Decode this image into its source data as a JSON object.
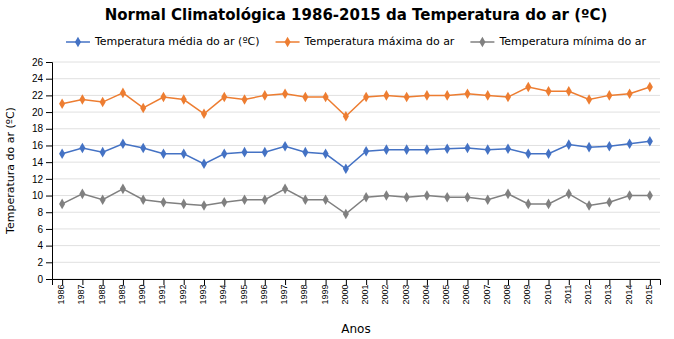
{
  "chart_data": {
    "type": "line",
    "title": "Normal Climatológica 1986-2015 da Temperatura do ar (ºC)",
    "x_label": "Anos",
    "y_label": "Temperatura do ar (ºC)",
    "x": [
      1986,
      1987,
      1988,
      1989,
      1990,
      1991,
      1992,
      1993,
      1994,
      1995,
      1996,
      1997,
      1998,
      1999,
      2000,
      2001,
      2002,
      2003,
      2004,
      2005,
      2006,
      2007,
      2008,
      2009,
      2010,
      2011,
      2012,
      2013,
      2014,
      2015
    ],
    "series": [
      {
        "name": "Temperatura média do ar (ºC)",
        "color": "#4472C4",
        "values": [
          15.0,
          15.7,
          15.2,
          16.2,
          15.7,
          15.0,
          15.0,
          13.8,
          15.0,
          15.2,
          15.2,
          15.9,
          15.2,
          15.0,
          13.2,
          15.3,
          15.5,
          15.5,
          15.5,
          15.6,
          15.7,
          15.5,
          15.6,
          15.0,
          15.0,
          16.1,
          15.8,
          15.9,
          16.2,
          16.5
        ]
      },
      {
        "name": "Temperatura máxima do ar",
        "color": "#ED7D31",
        "values": [
          21.0,
          21.5,
          21.2,
          22.3,
          20.5,
          21.8,
          21.5,
          19.8,
          21.8,
          21.5,
          22.0,
          22.2,
          21.8,
          21.8,
          19.5,
          21.8,
          22.0,
          21.8,
          22.0,
          22.0,
          22.2,
          22.0,
          21.8,
          23.0,
          22.5,
          22.5,
          21.5,
          22.0,
          22.2,
          23.0
        ]
      },
      {
        "name": "Temperatura mínima do ar",
        "color": "#808080",
        "values": [
          9.0,
          10.2,
          9.5,
          10.8,
          9.5,
          9.2,
          9.0,
          8.8,
          9.2,
          9.5,
          9.5,
          10.8,
          9.5,
          9.5,
          7.8,
          9.8,
          10.0,
          9.8,
          10.0,
          9.8,
          9.8,
          9.5,
          10.2,
          9.0,
          9.0,
          10.2,
          8.8,
          9.2,
          10.0,
          10.0
        ]
      }
    ],
    "marker": "diamond",
    "xlim": [
      1985.5,
      2015.5
    ],
    "xticks": [
      1986,
      1987,
      1988,
      1989,
      1990,
      1991,
      1992,
      1993,
      1994,
      1995,
      1996,
      1997,
      1998,
      1999,
      2000,
      2001,
      2002,
      2003,
      2004,
      2005,
      2006,
      2007,
      2008,
      2009,
      2010,
      2011,
      2012,
      2013,
      2014,
      2015
    ],
    "ylim": [
      0,
      26
    ],
    "yticks": [
      0,
      2,
      4,
      6,
      8,
      10,
      12,
      14,
      16,
      18,
      20,
      22,
      24,
      26
    ],
    "grid": "y",
    "legend": "top"
  }
}
